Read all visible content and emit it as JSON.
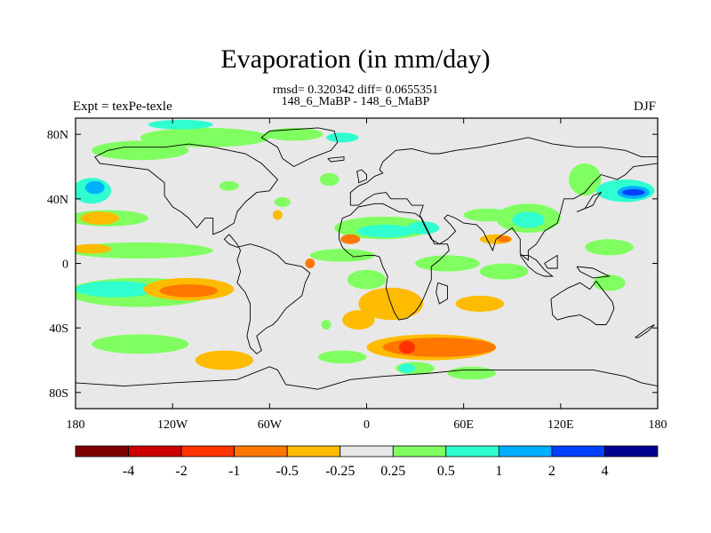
{
  "title": "Evaporation (in mm/day)",
  "stats_line": "rmsd= 0.320342 diff= 0.0655351",
  "comparison_line": "148_6_MaBP - 148_6_MaBP",
  "left_label": "Expt = texPe-texle",
  "right_label": "DJF",
  "map": {
    "lon_range": [
      -180,
      180
    ],
    "lat_range": [
      -90,
      90
    ],
    "y_ticks": [
      "80N",
      "40N",
      "0",
      "40S",
      "80S"
    ],
    "y_tick_values": [
      80,
      40,
      0,
      -40,
      -80
    ],
    "x_ticks": [
      "180",
      "120W",
      "60W",
      "0",
      "60E",
      "120E",
      "180"
    ],
    "x_tick_values": [
      -180,
      -120,
      -60,
      0,
      60,
      120,
      180
    ],
    "background_color": "#e8e8e8"
  },
  "colorbar": {
    "colors": [
      "#800000",
      "#cc0000",
      "#ff3300",
      "#ff7700",
      "#ffbb00",
      "#e8e8e8",
      "#80ff60",
      "#30ffd0",
      "#00b0ff",
      "#0040ff",
      "#000090"
    ],
    "labels": [
      "-4",
      "-2",
      "-1",
      "-0.5",
      "-0.25",
      "0.25",
      "0.5",
      "1",
      "2",
      "4"
    ]
  },
  "field_blobs": [
    {
      "lon": -170,
      "lat": 45,
      "rx": 12,
      "ry": 8,
      "value": 0.6
    },
    {
      "lon": -168,
      "lat": 47,
      "rx": 6,
      "ry": 4,
      "value": 1.0
    },
    {
      "lon": -140,
      "lat": 70,
      "rx": 30,
      "ry": 6,
      "value": 0.3
    },
    {
      "lon": -100,
      "lat": 78,
      "rx": 40,
      "ry": 6,
      "value": 0.3
    },
    {
      "lon": -160,
      "lat": 28,
      "rx": 25,
      "ry": 5,
      "value": 0.3
    },
    {
      "lon": -165,
      "lat": 28,
      "rx": 12,
      "ry": 4,
      "value": -0.3
    },
    {
      "lon": -140,
      "lat": 8,
      "rx": 45,
      "ry": 5,
      "value": 0.3
    },
    {
      "lon": -170,
      "lat": 9,
      "rx": 12,
      "ry": 3,
      "value": -0.3
    },
    {
      "lon": -140,
      "lat": -18,
      "rx": 45,
      "ry": 9,
      "value": 0.3
    },
    {
      "lon": -155,
      "lat": -16,
      "rx": 25,
      "ry": 5,
      "value": 0.6
    },
    {
      "lon": -110,
      "lat": -16,
      "rx": 28,
      "ry": 7,
      "value": -0.3
    },
    {
      "lon": -110,
      "lat": -17,
      "rx": 18,
      "ry": 4,
      "value": -0.6
    },
    {
      "lon": -140,
      "lat": -50,
      "rx": 30,
      "ry": 6,
      "value": 0.3
    },
    {
      "lon": -88,
      "lat": -60,
      "rx": 18,
      "ry": 6,
      "value": -0.3
    },
    {
      "lon": -115,
      "lat": 86,
      "rx": 20,
      "ry": 3,
      "value": 0.6
    },
    {
      "lon": -45,
      "lat": 80,
      "rx": 18,
      "ry": 4,
      "value": 0.3
    },
    {
      "lon": -15,
      "lat": 78,
      "rx": 10,
      "ry": 3,
      "value": 0.6
    },
    {
      "lon": -85,
      "lat": 48,
      "rx": 6,
      "ry": 3,
      "value": 0.3
    },
    {
      "lon": -52,
      "lat": 38,
      "rx": 5,
      "ry": 3,
      "value": 0.3
    },
    {
      "lon": -55,
      "lat": 30,
      "rx": 3,
      "ry": 3,
      "value": -0.3
    },
    {
      "lon": -23,
      "lat": 52,
      "rx": 6,
      "ry": 4,
      "value": 0.3
    },
    {
      "lon": -15,
      "lat": 5,
      "rx": 20,
      "ry": 4,
      "value": 0.3
    },
    {
      "lon": 10,
      "lat": 22,
      "rx": 30,
      "ry": 7,
      "value": 0.4
    },
    {
      "lon": 12,
      "lat": 20,
      "rx": 18,
      "ry": 4,
      "value": 0.6
    },
    {
      "lon": 35,
      "lat": 22,
      "rx": 10,
      "ry": 4,
      "value": 0.6
    },
    {
      "lon": -10,
      "lat": 15,
      "rx": 6,
      "ry": 3,
      "value": -0.6
    },
    {
      "lon": -35,
      "lat": 0,
      "rx": 3,
      "ry": 3,
      "value": -0.6
    },
    {
      "lon": 50,
      "lat": 0,
      "rx": 20,
      "ry": 5,
      "value": 0.3
    },
    {
      "lon": 75,
      "lat": 30,
      "rx": 15,
      "ry": 4,
      "value": 0.3
    },
    {
      "lon": 100,
      "lat": 28,
      "rx": 20,
      "ry": 9,
      "value": 0.4
    },
    {
      "lon": 100,
      "lat": 27,
      "rx": 10,
      "ry": 5,
      "value": 0.6
    },
    {
      "lon": 80,
      "lat": 15,
      "rx": 10,
      "ry": 3,
      "value": -0.3
    },
    {
      "lon": 85,
      "lat": 15,
      "rx": 4,
      "ry": 2,
      "value": -0.6
    },
    {
      "lon": 135,
      "lat": 52,
      "rx": 10,
      "ry": 10,
      "value": 0.3
    },
    {
      "lon": 160,
      "lat": 45,
      "rx": 18,
      "ry": 7,
      "value": 0.6
    },
    {
      "lon": 165,
      "lat": 44,
      "rx": 10,
      "ry": 4,
      "value": 1.0
    },
    {
      "lon": 165,
      "lat": 44,
      "rx": 7,
      "ry": 2,
      "value": 2.0
    },
    {
      "lon": 150,
      "lat": 10,
      "rx": 15,
      "ry": 5,
      "value": 0.3
    },
    {
      "lon": 150,
      "lat": -12,
      "rx": 10,
      "ry": 5,
      "value": 0.3
    },
    {
      "lon": 85,
      "lat": -5,
      "rx": 15,
      "ry": 5,
      "value": 0.3
    },
    {
      "lon": 0,
      "lat": -10,
      "rx": 12,
      "ry": 6,
      "value": 0.4
    },
    {
      "lon": 70,
      "lat": -25,
      "rx": 15,
      "ry": 5,
      "value": -0.3
    },
    {
      "lon": 15,
      "lat": -25,
      "rx": 20,
      "ry": 10,
      "value": -0.3
    },
    {
      "lon": -5,
      "lat": -35,
      "rx": 10,
      "ry": 6,
      "value": -0.3
    },
    {
      "lon": 40,
      "lat": -52,
      "rx": 40,
      "ry": 8,
      "value": -0.3
    },
    {
      "lon": 45,
      "lat": -52,
      "rx": 35,
      "ry": 6,
      "value": -0.6
    },
    {
      "lon": 25,
      "lat": -52,
      "rx": 5,
      "ry": 4,
      "value": -1.5
    },
    {
      "lon": 30,
      "lat": -65,
      "rx": 12,
      "ry": 4,
      "value": 0.3
    },
    {
      "lon": 65,
      "lat": -68,
      "rx": 15,
      "ry": 4,
      "value": 0.3
    },
    {
      "lon": 25,
      "lat": -65,
      "rx": 5,
      "ry": 3,
      "value": 0.6
    },
    {
      "lon": -15,
      "lat": -58,
      "rx": 15,
      "ry": 4,
      "value": 0.3
    },
    {
      "lon": -25,
      "lat": -38,
      "rx": 3,
      "ry": 3,
      "value": 0.3
    }
  ],
  "coastlines": [
    [
      [
        -140,
        72
      ],
      [
        -125,
        72
      ],
      [
        -110,
        74
      ],
      [
        -95,
        72
      ],
      [
        -85,
        70
      ],
      [
        -75,
        68
      ],
      [
        -65,
        62
      ],
      [
        -55,
        52
      ],
      [
        -60,
        45
      ],
      [
        -68,
        44
      ],
      [
        -75,
        38
      ],
      [
        -80,
        32
      ],
      [
        -82,
        25
      ],
      [
        -90,
        20
      ],
      [
        -95,
        18
      ],
      [
        -95,
        28
      ],
      [
        -100,
        28
      ],
      [
        -105,
        22
      ],
      [
        -110,
        28
      ],
      [
        -115,
        32
      ],
      [
        -120,
        35
      ],
      [
        -125,
        42
      ],
      [
        -125,
        50
      ],
      [
        -135,
        58
      ],
      [
        -150,
        60
      ],
      [
        -165,
        62
      ],
      [
        -168,
        66
      ],
      [
        -160,
        70
      ],
      [
        -150,
        72
      ],
      [
        -140,
        72
      ]
    ],
    [
      [
        -85,
        18
      ],
      [
        -80,
        12
      ],
      [
        -78,
        8
      ],
      [
        -80,
        2
      ],
      [
        -78,
        -5
      ],
      [
        -80,
        -12
      ],
      [
        -75,
        -18
      ],
      [
        -72,
        -25
      ],
      [
        -72,
        -35
      ],
      [
        -74,
        -45
      ],
      [
        -72,
        -52
      ],
      [
        -68,
        -56
      ],
      [
        -65,
        -54
      ],
      [
        -68,
        -45
      ],
      [
        -62,
        -40
      ],
      [
        -58,
        -38
      ],
      [
        -55,
        -35
      ],
      [
        -50,
        -28
      ],
      [
        -45,
        -24
      ],
      [
        -40,
        -20
      ],
      [
        -38,
        -12
      ],
      [
        -35,
        -6
      ],
      [
        -40,
        -2
      ],
      [
        -50,
        0
      ],
      [
        -55,
        5
      ],
      [
        -60,
        8
      ],
      [
        -65,
        10
      ],
      [
        -72,
        12
      ],
      [
        -80,
        10
      ],
      [
        -85,
        12
      ],
      [
        -88,
        15
      ],
      [
        -85,
        18
      ]
    ],
    [
      [
        -60,
        82
      ],
      [
        -30,
        84
      ],
      [
        -20,
        82
      ],
      [
        -18,
        75
      ],
      [
        -22,
        70
      ],
      [
        -35,
        65
      ],
      [
        -45,
        60
      ],
      [
        -52,
        65
      ],
      [
        -55,
        72
      ],
      [
        -65,
        78
      ],
      [
        -60,
        82
      ]
    ],
    [
      [
        -10,
        36
      ],
      [
        -10,
        44
      ],
      [
        -5,
        48
      ],
      [
        0,
        50
      ],
      [
        5,
        54
      ],
      [
        10,
        56
      ],
      [
        8,
        58
      ],
      [
        10,
        63
      ],
      [
        18,
        70
      ],
      [
        28,
        71
      ],
      [
        40,
        68
      ],
      [
        45,
        68
      ],
      [
        55,
        70
      ],
      [
        70,
        72
      ],
      [
        85,
        75
      ],
      [
        100,
        78
      ],
      [
        115,
        74
      ],
      [
        130,
        72
      ],
      [
        145,
        72
      ],
      [
        160,
        70
      ],
      [
        170,
        66
      ],
      [
        180,
        66
      ],
      [
        180,
        62
      ],
      [
        165,
        60
      ],
      [
        160,
        55
      ],
      [
        155,
        52
      ],
      [
        145,
        55
      ],
      [
        140,
        50
      ],
      [
        135,
        44
      ],
      [
        128,
        40
      ],
      [
        122,
        40
      ],
      [
        120,
        32
      ],
      [
        118,
        25
      ],
      [
        110,
        20
      ],
      [
        105,
        12
      ],
      [
        100,
        8
      ],
      [
        100,
        2
      ],
      [
        95,
        6
      ],
      [
        95,
        15
      ],
      [
        90,
        22
      ],
      [
        80,
        15
      ],
      [
        78,
        8
      ],
      [
        72,
        20
      ],
      [
        68,
        24
      ],
      [
        60,
        25
      ],
      [
        55,
        28
      ],
      [
        50,
        30
      ],
      [
        48,
        28
      ],
      [
        52,
        24
      ],
      [
        55,
        20
      ],
      [
        50,
        15
      ],
      [
        45,
        12
      ],
      [
        40,
        15
      ],
      [
        35,
        25
      ],
      [
        33,
        30
      ],
      [
        35,
        36
      ],
      [
        28,
        36
      ],
      [
        25,
        40
      ],
      [
        15,
        40
      ],
      [
        12,
        44
      ],
      [
        5,
        43
      ],
      [
        0,
        40
      ],
      [
        -5,
        36
      ],
      [
        -10,
        36
      ]
    ],
    [
      [
        -17,
        20
      ],
      [
        -15,
        28
      ],
      [
        -10,
        30
      ],
      [
        -5,
        35
      ],
      [
        5,
        37
      ],
      [
        10,
        37
      ],
      [
        20,
        32
      ],
      [
        30,
        31
      ],
      [
        34,
        28
      ],
      [
        38,
        20
      ],
      [
        42,
        12
      ],
      [
        50,
        12
      ],
      [
        51,
        8
      ],
      [
        45,
        2
      ],
      [
        40,
        -2
      ],
      [
        40,
        -10
      ],
      [
        38,
        -15
      ],
      [
        35,
        -22
      ],
      [
        33,
        -26
      ],
      [
        30,
        -30
      ],
      [
        25,
        -34
      ],
      [
        20,
        -35
      ],
      [
        17,
        -30
      ],
      [
        14,
        -22
      ],
      [
        12,
        -15
      ],
      [
        13,
        -8
      ],
      [
        10,
        -2
      ],
      [
        8,
        4
      ],
      [
        5,
        5
      ],
      [
        0,
        5
      ],
      [
        -8,
        4
      ],
      [
        -12,
        7
      ],
      [
        -15,
        10
      ],
      [
        -17,
        15
      ],
      [
        -17,
        20
      ]
    ],
    [
      [
        114,
        -22
      ],
      [
        115,
        -32
      ],
      [
        118,
        -35
      ],
      [
        125,
        -33
      ],
      [
        132,
        -32
      ],
      [
        138,
        -35
      ],
      [
        142,
        -38
      ],
      [
        148,
        -38
      ],
      [
        150,
        -35
      ],
      [
        153,
        -28
      ],
      [
        152,
        -24
      ],
      [
        145,
        -15
      ],
      [
        142,
        -11
      ],
      [
        138,
        -16
      ],
      [
        132,
        -12
      ],
      [
        125,
        -15
      ],
      [
        120,
        -18
      ],
      [
        114,
        -22
      ]
    ],
    [
      [
        -180,
        -74
      ],
      [
        -150,
        -76
      ],
      [
        -120,
        -74
      ],
      [
        -100,
        -73
      ],
      [
        -80,
        -72
      ],
      [
        -60,
        -64
      ],
      [
        -55,
        -66
      ],
      [
        -50,
        -75
      ],
      [
        -30,
        -78
      ],
      [
        -10,
        -72
      ],
      [
        10,
        -70
      ],
      [
        40,
        -68
      ],
      [
        60,
        -66
      ],
      [
        80,
        -66
      ],
      [
        100,
        -66
      ],
      [
        120,
        -66
      ],
      [
        140,
        -66
      ],
      [
        160,
        -70
      ],
      [
        170,
        -74
      ],
      [
        180,
        -76
      ]
    ],
    [
      [
        95,
        5
      ],
      [
        100,
        -2
      ],
      [
        105,
        -6
      ],
      [
        110,
        -8
      ],
      [
        115,
        -8
      ],
      [
        110,
        -4
      ],
      [
        105,
        2
      ],
      [
        100,
        5
      ],
      [
        95,
        5
      ]
    ],
    [
      [
        110,
        0
      ],
      [
        118,
        5
      ],
      [
        118,
        -3
      ],
      [
        112,
        -3
      ],
      [
        110,
        0
      ]
    ],
    [
      [
        130,
        -2
      ],
      [
        140,
        -3
      ],
      [
        150,
        -8
      ],
      [
        140,
        -9
      ],
      [
        132,
        -5
      ],
      [
        130,
        -2
      ]
    ],
    [
      [
        130,
        32
      ],
      [
        140,
        36
      ],
      [
        142,
        40
      ],
      [
        145,
        44
      ],
      [
        140,
        42
      ],
      [
        135,
        34
      ],
      [
        130,
        32
      ]
    ],
    [
      [
        -5,
        50
      ],
      [
        0,
        52
      ],
      [
        0,
        55
      ],
      [
        -3,
        58
      ],
      [
        -6,
        57
      ],
      [
        -5,
        52
      ],
      [
        -5,
        50
      ]
    ],
    [
      [
        44,
        -12
      ],
      [
        50,
        -14
      ],
      [
        50,
        -22
      ],
      [
        45,
        -25
      ],
      [
        43,
        -18
      ],
      [
        44,
        -12
      ]
    ],
    [
      [
        166,
        -46
      ],
      [
        174,
        -40
      ],
      [
        178,
        -38
      ],
      [
        174,
        -42
      ],
      [
        168,
        -46
      ],
      [
        166,
        -46
      ]
    ],
    [
      [
        -24,
        65
      ],
      [
        -14,
        66
      ],
      [
        -14,
        64
      ],
      [
        -22,
        63
      ],
      [
        -24,
        65
      ]
    ]
  ]
}
